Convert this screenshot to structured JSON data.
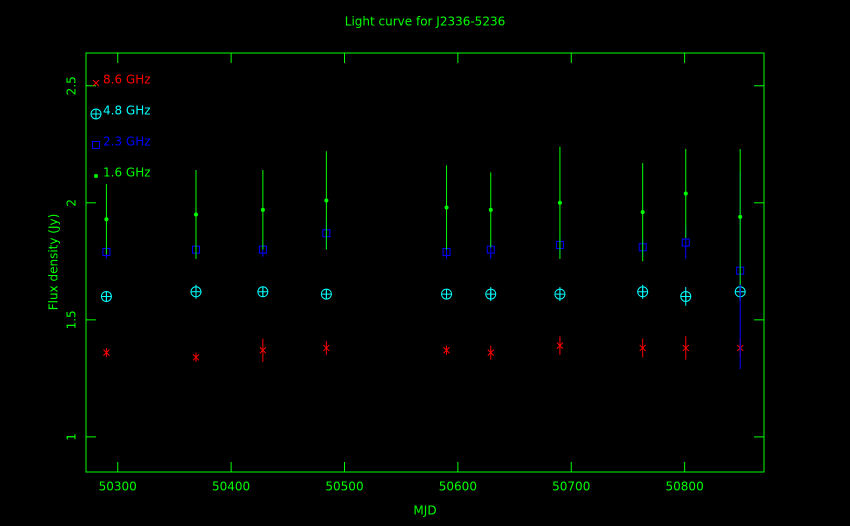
{
  "chart_data": {
    "type": "scatter",
    "title": "Light curve for J2336-5236",
    "x_label": "MJD",
    "y_label": "Flux density (Jy)",
    "axis_color": "#00ff00",
    "x": [
      50290,
      50369,
      50428,
      50484,
      50590,
      50629,
      50690,
      50763,
      50801,
      50849
    ],
    "series": [
      {
        "name": "8.6 GHz",
        "color": "#ff0000",
        "marker": "cross",
        "values": [
          1.36,
          1.34,
          1.37,
          1.38,
          1.37,
          1.36,
          1.39,
          1.38,
          1.38,
          1.38
        ],
        "errors": [
          0.02,
          0.02,
          0.05,
          0.03,
          0.02,
          0.03,
          0.04,
          0.04,
          0.05,
          0.04
        ]
      },
      {
        "name": "4.8 GHz",
        "color": "#00ffff",
        "marker": "circle-plus",
        "values": [
          1.6,
          1.62,
          1.62,
          1.61,
          1.61,
          1.61,
          1.61,
          1.62,
          1.6,
          1.62
        ],
        "errors": [
          0.02,
          0.03,
          0.02,
          0.02,
          0.02,
          0.03,
          0.03,
          0.03,
          0.04,
          0.04
        ]
      },
      {
        "name": "2.3 GHz",
        "color": "#0000ff",
        "marker": "square",
        "values": [
          1.79,
          1.8,
          1.8,
          1.87,
          1.79,
          1.8,
          1.82,
          1.81,
          1.83,
          1.71
        ],
        "errors": [
          0.03,
          0.03,
          0.03,
          0.06,
          0.03,
          0.04,
          0.04,
          0.04,
          0.07,
          0.42
        ]
      },
      {
        "name": "1.6 GHz",
        "color": "#00ff00",
        "marker": "dot",
        "values": [
          1.93,
          1.95,
          1.97,
          2.01,
          1.98,
          1.97,
          2.0,
          1.96,
          2.04,
          1.94
        ],
        "errors": [
          0.15,
          0.19,
          0.17,
          0.21,
          0.18,
          0.16,
          0.24,
          0.21,
          0.19,
          0.29
        ]
      }
    ],
    "xlim": [
      50272,
      50870
    ],
    "xticks": [
      50300,
      50400,
      50500,
      50600,
      50700,
      50800
    ],
    "ylim": [
      0.85,
      2.64
    ],
    "yticks": [
      1,
      1.5,
      2,
      2.5
    ],
    "legend": "upper left"
  }
}
